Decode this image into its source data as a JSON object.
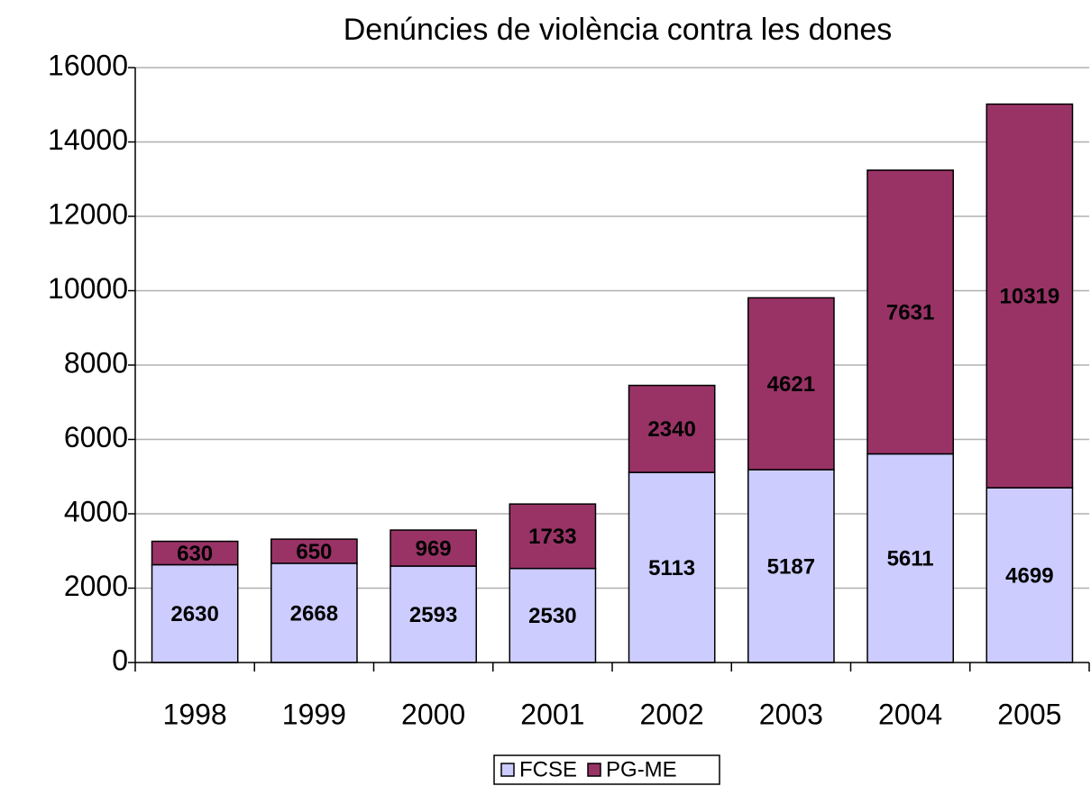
{
  "chart_data": {
    "type": "bar",
    "stacked": true,
    "title": "Denúncies de violència contra les dones",
    "categories": [
      "1998",
      "1999",
      "2000",
      "2001",
      "2002",
      "2003",
      "2004",
      "2005"
    ],
    "series": [
      {
        "name": "FCSE",
        "color": "#ccccff",
        "values": [
          2630,
          2668,
          2593,
          2530,
          5113,
          5187,
          5611,
          4699
        ]
      },
      {
        "name": "PG-ME",
        "color": "#993366",
        "values": [
          630,
          650,
          969,
          1733,
          2340,
          4621,
          7631,
          10319
        ]
      }
    ],
    "ylim": [
      0,
      16000
    ],
    "yticks": [
      0,
      2000,
      4000,
      6000,
      8000,
      10000,
      12000,
      14000,
      16000
    ],
    "grid": true,
    "legend": "bottom"
  }
}
